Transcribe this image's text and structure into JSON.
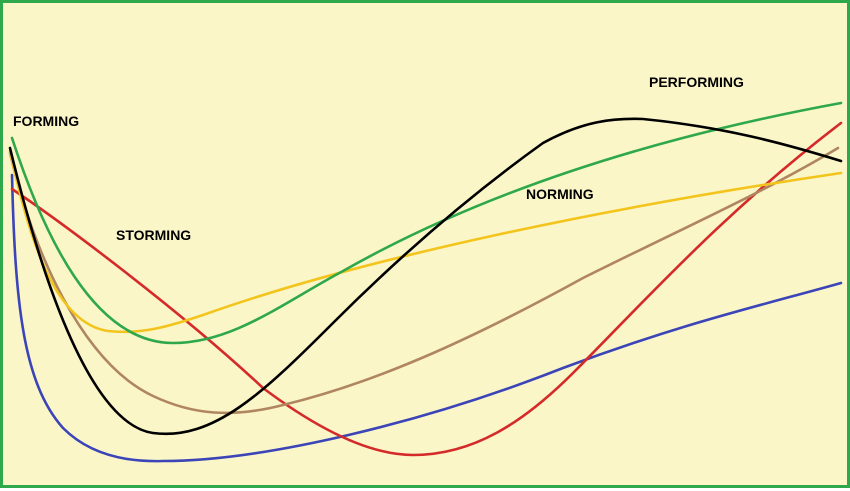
{
  "background_color": "#fbf6c8",
  "border_color": "#2ea84a",
  "stages": {
    "forming": "FORMING",
    "storming": "STORMING",
    "norming": "NORMING",
    "performing": "PERFORMING"
  },
  "curve_colors": {
    "blue": "#3c45b8",
    "red": "#d42a2a",
    "black": "#000000",
    "brown": "#b08660",
    "yellow": "#f2c41c",
    "green": "#2ea84a"
  }
}
